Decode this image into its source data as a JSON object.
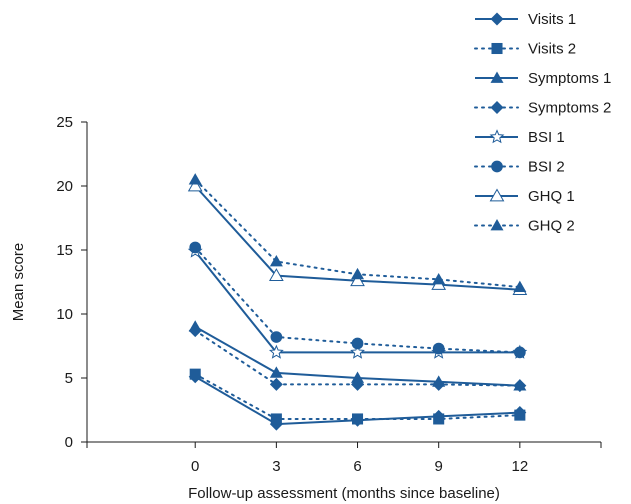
{
  "chart_data": {
    "type": "line",
    "xlabel": "Follow-up assessment (months since baseline)",
    "ylabel": "Mean score",
    "x": [
      0,
      3,
      6,
      9,
      12
    ],
    "xticks": [
      "0",
      "3",
      "6",
      "9",
      "12"
    ],
    "yticks": [
      "0",
      "5",
      "10",
      "15",
      "20",
      "25"
    ],
    "ylim": [
      0,
      25
    ],
    "xlim": [
      -4,
      15
    ],
    "grid": false,
    "legend": "top-right",
    "color": "#1f5c99",
    "series": [
      {
        "name": "Visits 1",
        "dash": "solid",
        "marker": "diamond",
        "values": [
          5.1,
          1.4,
          1.7,
          2.0,
          2.3
        ]
      },
      {
        "name": "Visits 2",
        "dash": "dotted",
        "marker": "square",
        "values": [
          5.3,
          1.8,
          1.8,
          1.8,
          2.1
        ]
      },
      {
        "name": "Symptoms 1",
        "dash": "solid",
        "marker": "triangle",
        "values": [
          9.0,
          5.4,
          5.0,
          4.7,
          4.4
        ]
      },
      {
        "name": "Symptoms 2",
        "dash": "dotted",
        "marker": "diamond",
        "values": [
          8.7,
          4.5,
          4.5,
          4.5,
          4.4
        ]
      },
      {
        "name": "BSI 1",
        "dash": "solid",
        "marker": "star-open",
        "values": [
          14.9,
          7.0,
          7.0,
          7.0,
          7.0
        ]
      },
      {
        "name": "BSI 2",
        "dash": "dotted",
        "marker": "circle",
        "values": [
          15.2,
          8.2,
          7.7,
          7.3,
          7.0
        ]
      },
      {
        "name": "GHQ 1",
        "dash": "solid",
        "marker": "triangle-open",
        "values": [
          20.0,
          13.0,
          12.6,
          12.3,
          11.9
        ]
      },
      {
        "name": "GHQ 2",
        "dash": "dotted",
        "marker": "triangle",
        "values": [
          20.5,
          14.1,
          13.1,
          12.7,
          12.1
        ]
      }
    ]
  }
}
